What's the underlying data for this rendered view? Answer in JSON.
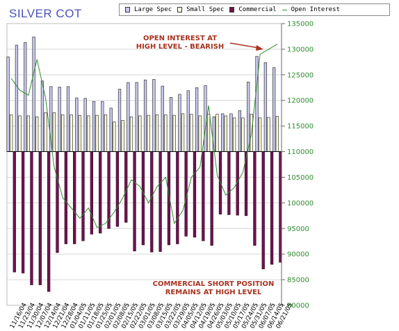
{
  "chart_data": {
    "type": "bar",
    "title": "SILVER COT",
    "categories": [
      "11/16/04",
      "11/23/04",
      "11/30/04",
      "12/07/04",
      "12/14/04",
      "12/21/04",
      "12/28/04",
      "01/04/05",
      "01/11/05",
      "01/18/05",
      "01/25/05",
      "02/01/05",
      "02/08/05",
      "02/15/05",
      "02/22/05",
      "03/01/05",
      "03/08/05",
      "03/15/05",
      "03/22/05",
      "03/29/05",
      "04/05/05",
      "04/12/05",
      "04/19/05",
      "04/26/05",
      "05/03/05",
      "05/10/05",
      "05/17/05",
      "05/24/05",
      "05/31/05",
      "06/07/05",
      "06/14/05",
      "06/21/05"
    ],
    "series": [
      {
        "name": "Large Spec",
        "color": "#c8c8f0",
        "values": [
          128500,
          130800,
          131300,
          132400,
          123800,
          122700,
          122600,
          122700,
          120500,
          120400,
          119800,
          119800,
          118500,
          122200,
          123500,
          123500,
          124000,
          124100,
          122800,
          120600,
          121200,
          121900,
          122500,
          122900,
          116800,
          117400,
          117400,
          118000,
          123600,
          128600,
          127400,
          126400
        ]
      },
      {
        "name": "Small Spec",
        "color": "#fcfcd8",
        "values": [
          117200,
          117000,
          117000,
          116800,
          117600,
          117600,
          117200,
          117200,
          117100,
          117000,
          117100,
          117200,
          115800,
          116100,
          116800,
          117000,
          117100,
          117200,
          117200,
          117100,
          117400,
          117300,
          117000,
          117300,
          117300,
          117000,
          116600,
          116600,
          117300,
          116600,
          116700,
          116900
        ]
      },
      {
        "name": "Commercial",
        "color": "#6e1450",
        "values": [
          86500,
          86300,
          84000,
          84000,
          82700,
          90300,
          92000,
          92000,
          92600,
          93900,
          94100,
          95000,
          95400,
          96200,
          90600,
          91800,
          90400,
          90500,
          91800,
          92000,
          93500,
          93300,
          92600,
          91700,
          97800,
          97700,
          97600,
          97500,
          91700,
          87100,
          88000,
          88400
        ]
      },
      {
        "name": "Open Interest",
        "color": "#2e8b2e",
        "type": "line",
        "values": [
          124300,
          122000,
          121000,
          128000,
          120500,
          107000,
          101000,
          99000,
          97000,
          99000,
          95200,
          96000,
          98200,
          101000,
          104500,
          103200,
          100000,
          103200,
          105000,
          96000,
          98500,
          105000,
          107000,
          119000,
          105500,
          101500,
          103000,
          106000,
          113500,
          129000,
          130000,
          131000
        ]
      }
    ],
    "baseline": 110000,
    "ylim": [
      80000,
      135000
    ],
    "ytick_step": 5000,
    "ytick_labels": [
      "80000",
      "85000",
      "90000",
      "95000",
      "100000",
      "105000",
      "110000",
      "115000",
      "120000",
      "125000",
      "130000",
      "135000"
    ],
    "annotations": [
      {
        "text": "OPEN INTEREST AT\nHIGH LEVEL - BEARISH",
        "color": "#a8321e"
      },
      {
        "text": "COMMERCIAL SHORT POSITION\nREMAINS AT HIGH LEVEL",
        "color": "#a8321e"
      }
    ],
    "legend_position": "top",
    "grid": true
  }
}
